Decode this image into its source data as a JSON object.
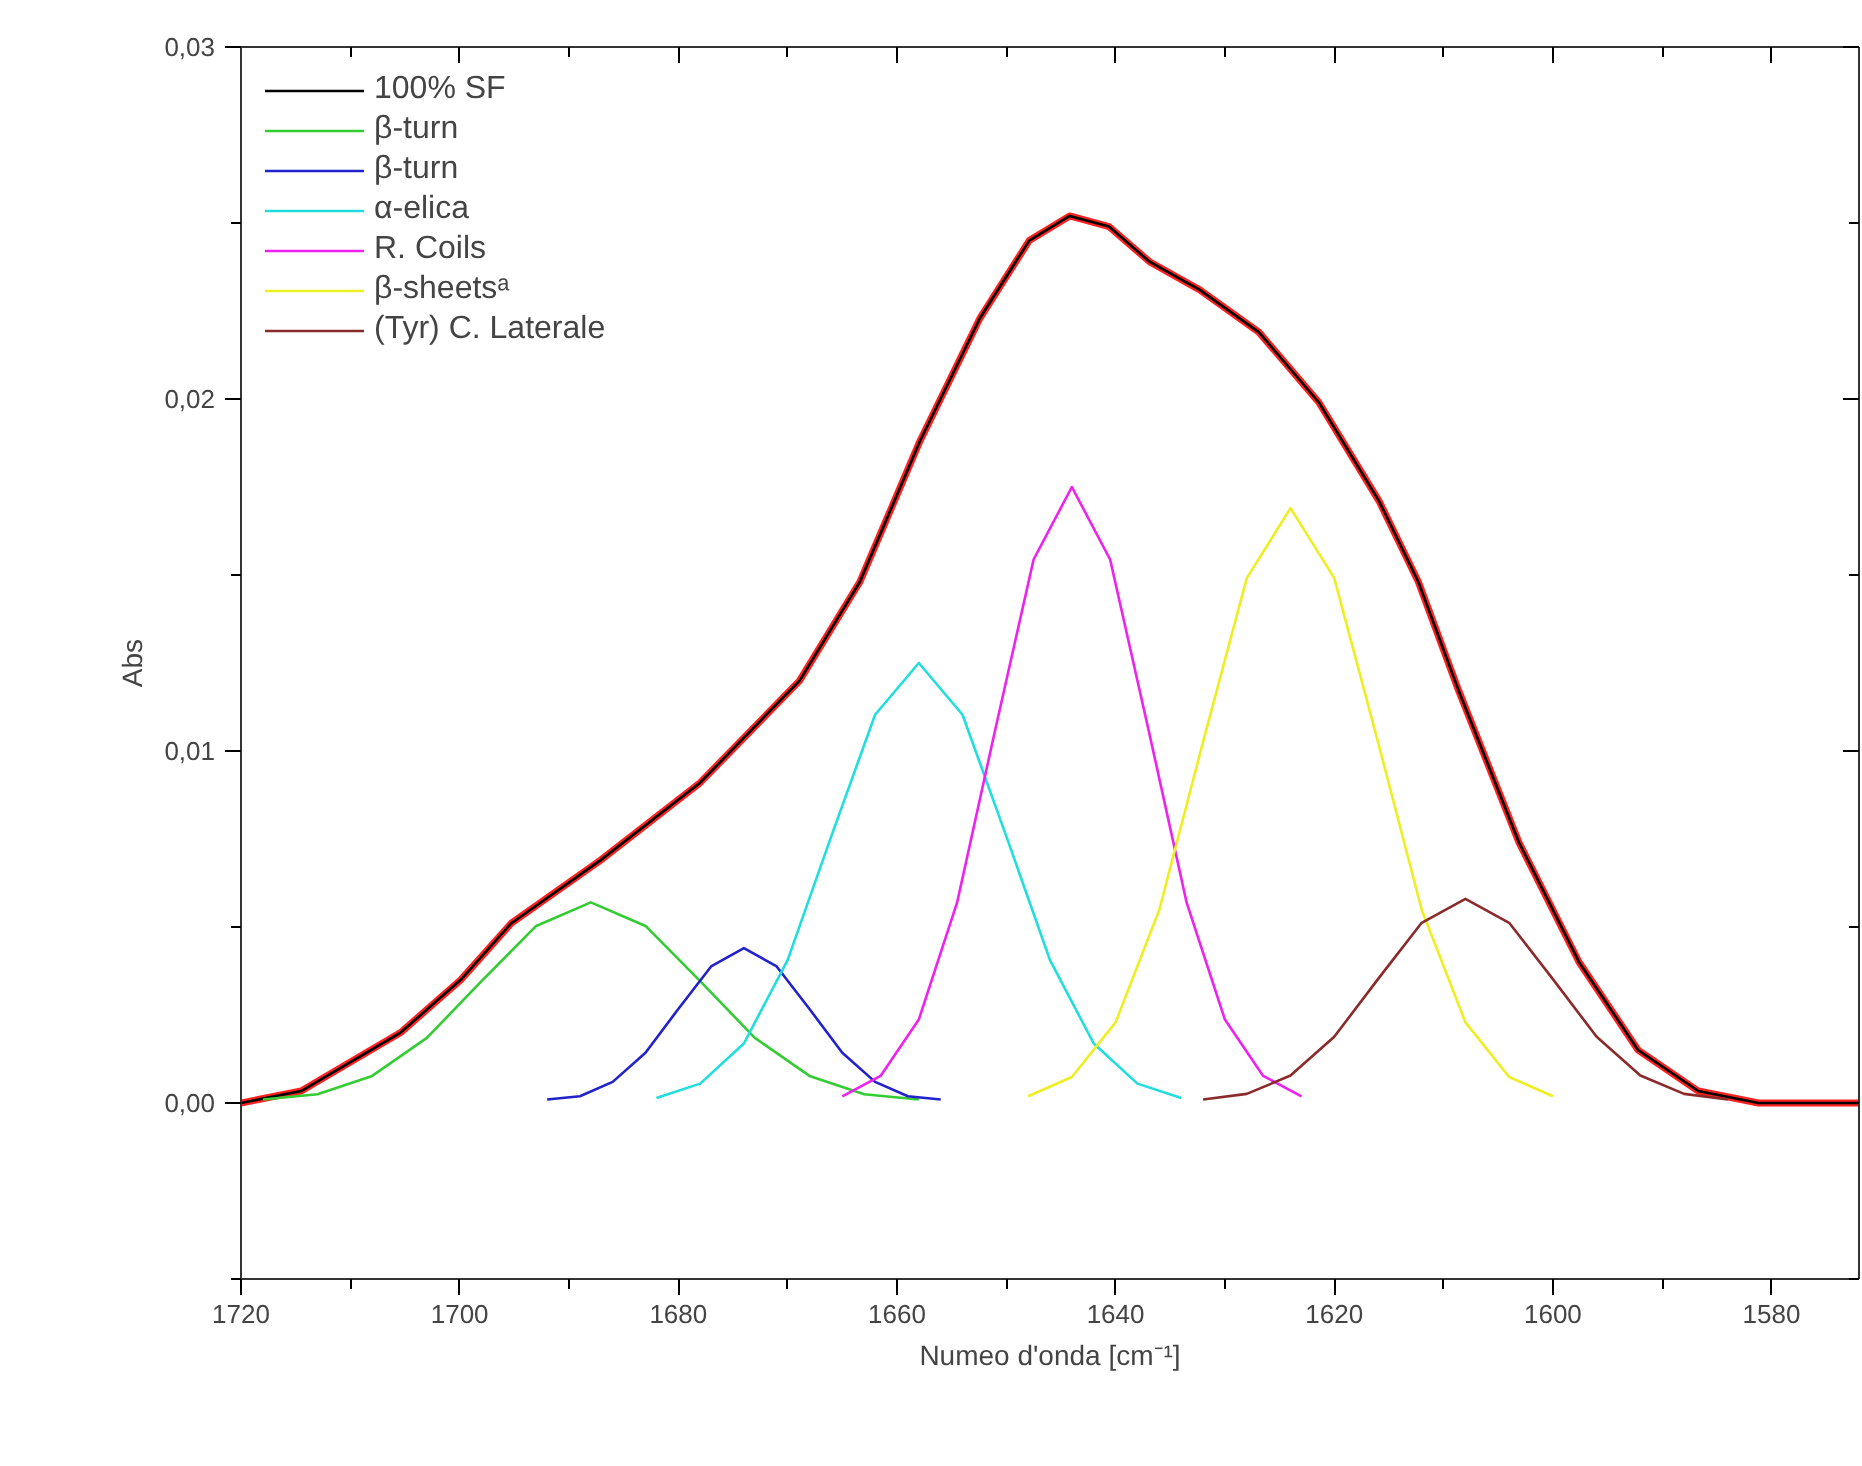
{
  "chart_data": {
    "type": "line",
    "xlabel": "Numeo d'onda [cm⁻¹]",
    "ylabel": "Abs",
    "xlim": [
      1720,
      1572
    ],
    "ylim": [
      -0.005,
      0.03
    ],
    "xticks": [
      1720,
      {
        "value": 1710,
        "label": null
      },
      1700,
      {
        "value": 1690,
        "label": null
      },
      1680,
      {
        "value": 1670,
        "label": null
      },
      1660,
      {
        "value": 1650,
        "label": null
      },
      1640,
      {
        "value": 1630,
        "label": null
      },
      1620,
      {
        "value": 1610,
        "label": null
      },
      1600,
      {
        "value": 1590,
        "label": null
      },
      1580
    ],
    "yticks": [
      {
        "value": -0.005,
        "label": null
      },
      {
        "value": 0,
        "label": "0,00"
      },
      {
        "value": 0.005,
        "label": null
      },
      {
        "value": 0.01,
        "label": "0,01"
      },
      {
        "value": 0.015,
        "label": null
      },
      {
        "value": 0.02,
        "label": "0,02"
      },
      {
        "value": 0.025,
        "label": null
      },
      {
        "value": 0.03,
        "label": "0,03"
      }
    ],
    "grid": false,
    "legend": "top left",
    "marker": "none",
    "line_style": "solid",
    "series": [
      {
        "color": "#ff2020",
        "x": [
          1720,
          1714.5,
          1705.4,
          1699.9,
          1695.3,
          1687.1,
          1678,
          1668.9,
          1663.4,
          1657.9,
          1652.4,
          1647.9,
          1644.2,
          1640.6,
          1636.9,
          1632.3,
          1626.9,
          1621.4,
          1615.9,
          1612.3,
          1608.6,
          1603.1,
          1597.6,
          1592.2,
          1586.7,
          1581.2,
          1572
        ],
        "values": [
          0,
          0.00034,
          0.002,
          0.0035,
          0.0051,
          0.0069,
          0.0091,
          0.012,
          0.0148,
          0.0188,
          0.0223,
          0.0245,
          0.0252,
          0.0249,
          0.0239,
          0.0231,
          0.0219,
          0.0199,
          0.0171,
          0.0148,
          0.0117,
          0.0074,
          0.004,
          0.0015,
          0.00034,
          0,
          0
        ]
      },
      {
        "name": "100% SF",
        "color": "#000000",
        "x": [
          1720,
          1714.5,
          1705.4,
          1699.9,
          1695.3,
          1687.1,
          1678,
          1668.9,
          1663.4,
          1657.9,
          1652.4,
          1647.9,
          1644.2,
          1640.6,
          1636.9,
          1632.3,
          1626.9,
          1621.4,
          1615.9,
          1612.3,
          1608.6,
          1603.1,
          1597.6,
          1592.2,
          1586.7,
          1581.2,
          1572
        ],
        "values": [
          0,
          0.00034,
          0.002,
          0.0035,
          0.0051,
          0.0069,
          0.0091,
          0.012,
          0.0148,
          0.0188,
          0.0223,
          0.0245,
          0.0252,
          0.0249,
          0.0239,
          0.0231,
          0.0219,
          0.0199,
          0.0171,
          0.0148,
          0.0117,
          0.0074,
          0.004,
          0.0015,
          0.00034,
          0,
          0
        ]
      },
      {
        "name": "β-turn",
        "color": "#33cc33",
        "x": [
          1718,
          1713,
          1708,
          1703,
          1698,
          1693,
          1688,
          1683,
          1678,
          1673,
          1668,
          1663,
          1658
        ],
        "values": [
          0.0001,
          0.00025,
          0.00077,
          0.00185,
          0.00346,
          0.00503,
          0.0057,
          0.00503,
          0.00346,
          0.00185,
          0.00077,
          0.00025,
          0.0001
        ]
      },
      {
        "name": "β-turn",
        "color": "#2222cc",
        "x": [
          1692,
          1689,
          1686,
          1683,
          1680,
          1677,
          1674,
          1671,
          1668,
          1665,
          1662,
          1659,
          1656
        ],
        "values": [
          0.0001,
          0.00019,
          0.0006,
          0.00143,
          0.00267,
          0.00388,
          0.0044,
          0.00388,
          0.00267,
          0.00143,
          0.0006,
          0.00019,
          0.0001
        ]
      },
      {
        "name": "α-elica",
        "color": "#22dddd",
        "x": [
          1682,
          1678,
          1674,
          1670,
          1666,
          1662,
          1658,
          1654,
          1650,
          1646,
          1642,
          1638,
          1634
        ],
        "values": [
          0.00014,
          0.00055,
          0.00169,
          0.00406,
          0.00758,
          0.01103,
          0.0125,
          0.01103,
          0.00758,
          0.00406,
          0.00169,
          0.00055,
          0.00014
        ]
      },
      {
        "name": "R. Coils",
        "color": "#ee22ee",
        "x": [
          1665,
          1661.5,
          1658,
          1654.5,
          1651,
          1647.5,
          1644,
          1640.5,
          1637,
          1633.5,
          1630,
          1626.5,
          1623
        ],
        "values": [
          0.00019,
          0.00077,
          0.00237,
          0.00569,
          0.01062,
          0.01544,
          0.0175,
          0.01544,
          0.01062,
          0.00569,
          0.00237,
          0.00077,
          0.00019
        ]
      },
      {
        "name": "β-sheetsᵃ",
        "color": "#eeee22",
        "x": [
          1648,
          1644,
          1640,
          1636,
          1632,
          1628,
          1624,
          1620,
          1616,
          1612,
          1608,
          1604,
          1600
        ],
        "values": [
          0.00019,
          0.00074,
          0.00229,
          0.00549,
          0.01026,
          0.01491,
          0.0169,
          0.01491,
          0.01026,
          0.00549,
          0.00229,
          0.00074,
          0.00019
        ]
      },
      {
        "name": "(Tyr) C. Laterale",
        "color": "#8b2a2a",
        "x": [
          1632,
          1628,
          1624,
          1620,
          1616,
          1612,
          1608,
          1604,
          1600,
          1596,
          1592,
          1588,
          1584
        ],
        "values": [
          0.0001,
          0.00026,
          0.00078,
          0.00188,
          0.00352,
          0.00512,
          0.0058,
          0.00512,
          0.00352,
          0.00188,
          0.00078,
          0.00026,
          0.0001
        ]
      }
    ]
  }
}
